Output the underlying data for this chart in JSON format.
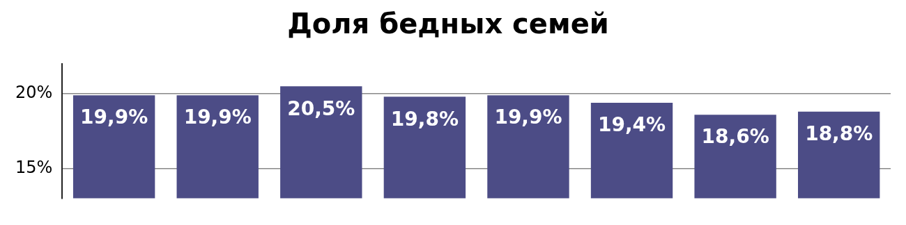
{
  "chart_data": {
    "type": "bar",
    "title": "Доля бедных семей",
    "categories": [
      null,
      null,
      null,
      null,
      null,
      null,
      null,
      null
    ],
    "values": [
      19.9,
      19.9,
      20.5,
      19.8,
      19.9,
      19.4,
      18.6,
      18.8
    ],
    "value_labels": [
      "19,9%",
      "19,9%",
      "20,5%",
      "19,8%",
      "19,9%",
      "19,4%",
      "18,6%",
      "18,8%"
    ],
    "color": "#4c4c86",
    "ylim": [
      13,
      22
    ],
    "yticks": [
      {
        "value": 15,
        "label": "15%"
      },
      {
        "value": 20,
        "label": "20%"
      }
    ],
    "grid": "y",
    "tick_labels": "y"
  }
}
